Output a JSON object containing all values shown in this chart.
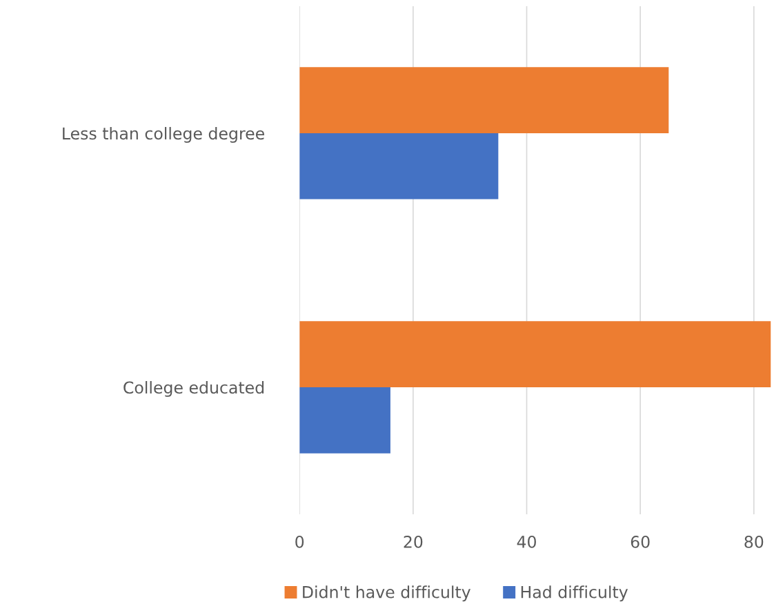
{
  "chart_data": {
    "type": "bar",
    "orientation": "horizontal",
    "categories": [
      "Less than college degree",
      "College educated"
    ],
    "series": [
      {
        "name": "Didn't have difficulty",
        "color": "#ed7d31",
        "values": [
          65,
          83
        ]
      },
      {
        "name": "Had difficulty",
        "color": "#4472c4",
        "values": [
          35,
          16
        ]
      }
    ],
    "xlim": [
      0,
      83
    ],
    "xticks": [
      0,
      20,
      40,
      60,
      80
    ],
    "grid": "x",
    "legend": "bottom"
  }
}
